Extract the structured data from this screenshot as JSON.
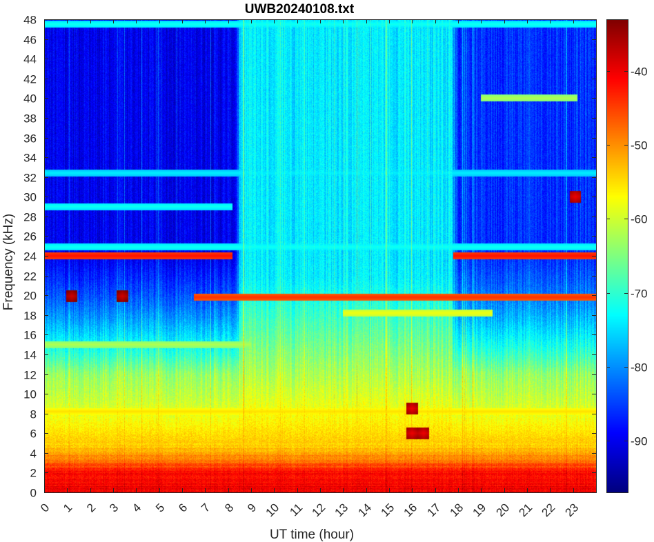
{
  "chart_data": {
    "type": "heatmap",
    "title": "UWB20240108.txt",
    "xlabel": "UT time (hour)",
    "ylabel": "Frequency (kHz)",
    "xlim": [
      0,
      24
    ],
    "ylim": [
      0,
      48
    ],
    "xticks": [
      0,
      1,
      2,
      3,
      4,
      5,
      6,
      7,
      8,
      9,
      10,
      11,
      12,
      13,
      14,
      15,
      16,
      17,
      18,
      19,
      20,
      21,
      22,
      23
    ],
    "yticks": [
      0,
      2,
      4,
      6,
      8,
      10,
      12,
      14,
      16,
      18,
      20,
      22,
      24,
      26,
      28,
      30,
      32,
      34,
      36,
      38,
      40,
      42,
      44,
      46,
      48
    ],
    "colorbar": {
      "range": [
        -97,
        -33
      ],
      "ticks": [
        -40,
        -50,
        -60,
        -70,
        -80,
        -90
      ],
      "colormap": "jet"
    },
    "features": {
      "background_by_period": [
        {
          "from_hour": 0,
          "to_hour": 8.3,
          "high_freq_level_db": -90
        },
        {
          "from_hour": 8.3,
          "to_hour": 17.7,
          "high_freq_level_db": -74
        },
        {
          "from_hour": 17.7,
          "to_hour": 24,
          "high_freq_level_db": -86
        }
      ],
      "low_freq_gradient": [
        {
          "freq_khz": 0,
          "level_db": -40
        },
        {
          "freq_khz": 2,
          "level_db": -42
        },
        {
          "freq_khz": 4,
          "level_db": -52
        },
        {
          "freq_khz": 9,
          "level_db": -60
        },
        {
          "freq_khz": 14,
          "level_db": -66
        },
        {
          "freq_khz": 20,
          "level_db": -72
        }
      ],
      "transmitter_lines": [
        {
          "freq_khz": 24.0,
          "from_hour": 0,
          "to_hour": 8.2,
          "level_db": -42
        },
        {
          "freq_khz": 24.0,
          "from_hour": 17.8,
          "to_hour": 24,
          "level_db": -42
        },
        {
          "freq_khz": 19.8,
          "from_hour": 6.5,
          "to_hour": 24,
          "level_db": -44
        },
        {
          "freq_khz": 8.2,
          "from_hour": 0,
          "to_hour": 24,
          "level_db": -55
        },
        {
          "freq_khz": 18.2,
          "from_hour": 13,
          "to_hour": 19.5,
          "level_db": -58
        },
        {
          "freq_khz": 47.5,
          "from_hour": 0,
          "to_hour": 24,
          "level_db": -72
        },
        {
          "freq_khz": 40.0,
          "from_hour": 19,
          "to_hour": 23.2,
          "level_db": -62
        },
        {
          "freq_khz": 32.4,
          "from_hour": 0,
          "to_hour": 24,
          "level_db": -74
        },
        {
          "freq_khz": 29.0,
          "from_hour": 0,
          "to_hour": 8.2,
          "level_db": -72
        },
        {
          "freq_khz": 24.9,
          "from_hour": 0,
          "to_hour": 24,
          "level_db": -72
        },
        {
          "freq_khz": 15.0,
          "from_hour": 0,
          "to_hour": 9,
          "level_db": -62
        }
      ],
      "bursts": [
        {
          "hour": 1.2,
          "freq_khz": 19.9,
          "level_db": -38
        },
        {
          "hour": 3.4,
          "freq_khz": 19.9,
          "level_db": -38
        },
        {
          "hour": 16,
          "freq_khz": 8.5,
          "level_db": -40
        },
        {
          "hour": 16,
          "freq_khz": 6,
          "level_db": -40
        },
        {
          "hour": 16.5,
          "freq_khz": 6,
          "level_db": -40
        },
        {
          "hour": 23.1,
          "freq_khz": 30,
          "level_db": -40
        }
      ]
    }
  }
}
